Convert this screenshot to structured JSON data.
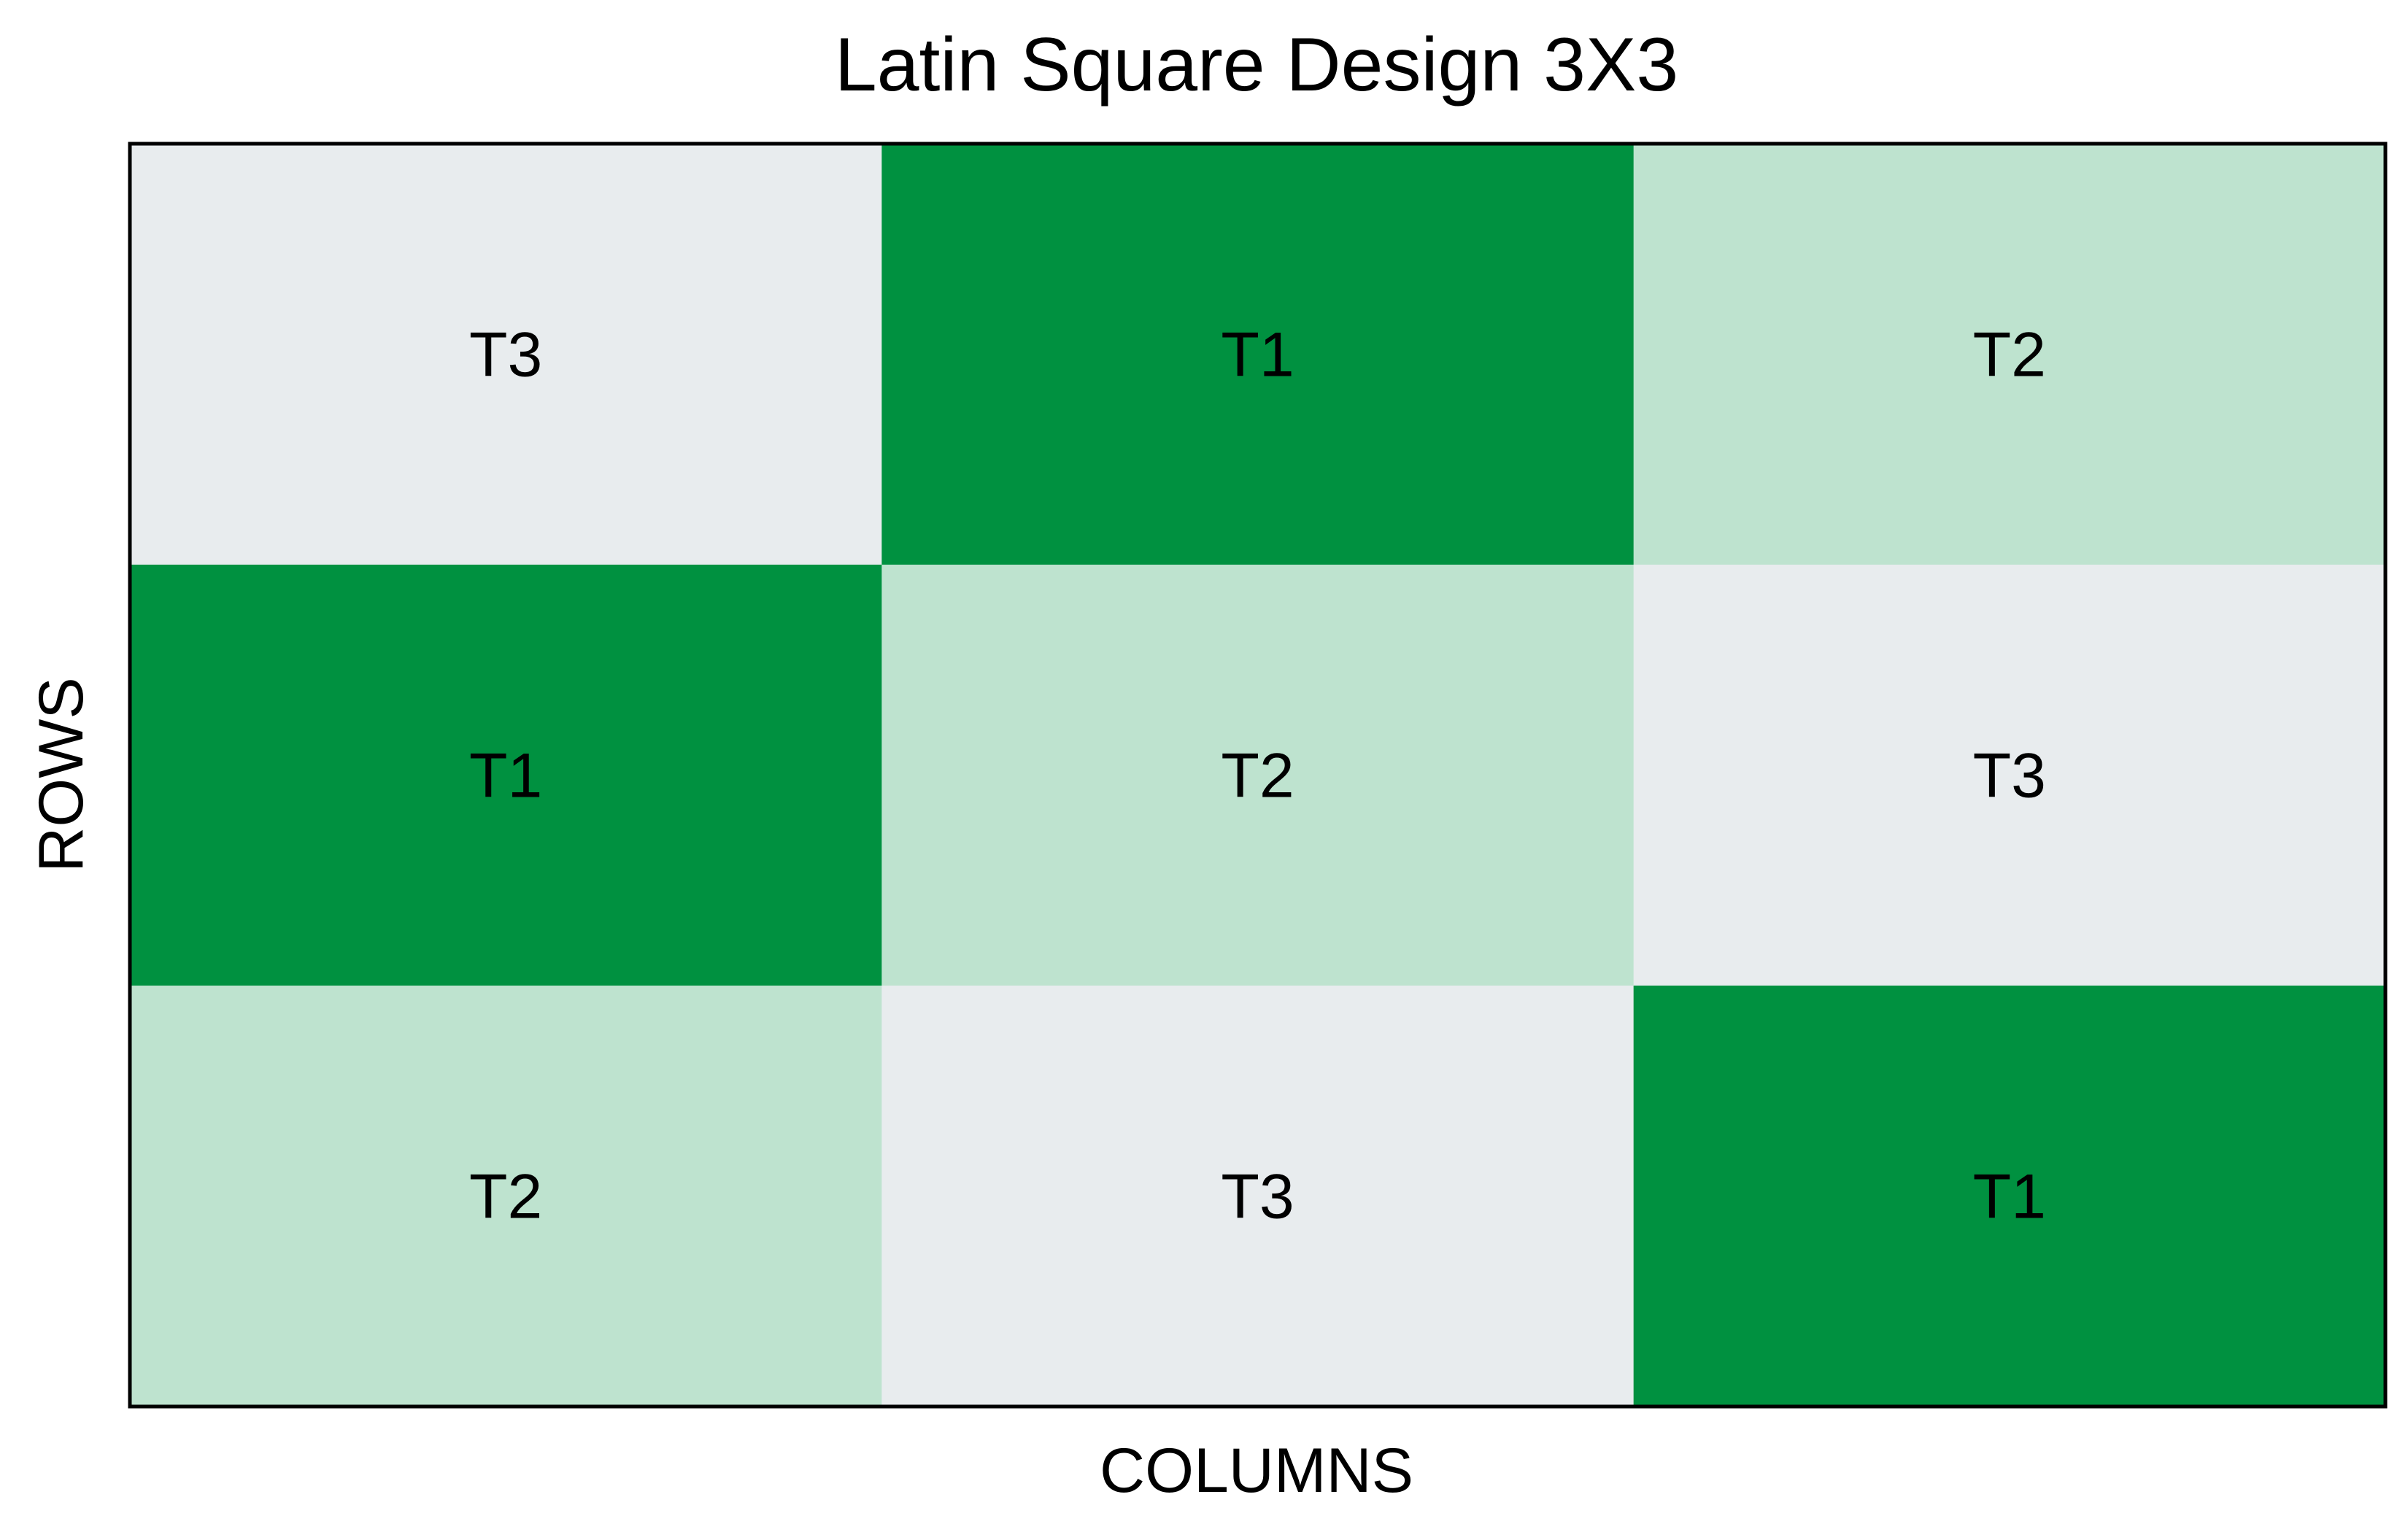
{
  "chart_data": {
    "type": "heatmap",
    "title": "Latin Square Design 3X3",
    "xlabel": "COLUMNS",
    "ylabel": "ROWS",
    "grid": [
      [
        "T3",
        "T1",
        "T2"
      ],
      [
        "T1",
        "T2",
        "T3"
      ],
      [
        "T2",
        "T3",
        "T1"
      ]
    ],
    "treatment_colors": {
      "T1": "#009140",
      "T2": "#bee3cf",
      "T3": "#e8ecee"
    },
    "legend": "none"
  }
}
